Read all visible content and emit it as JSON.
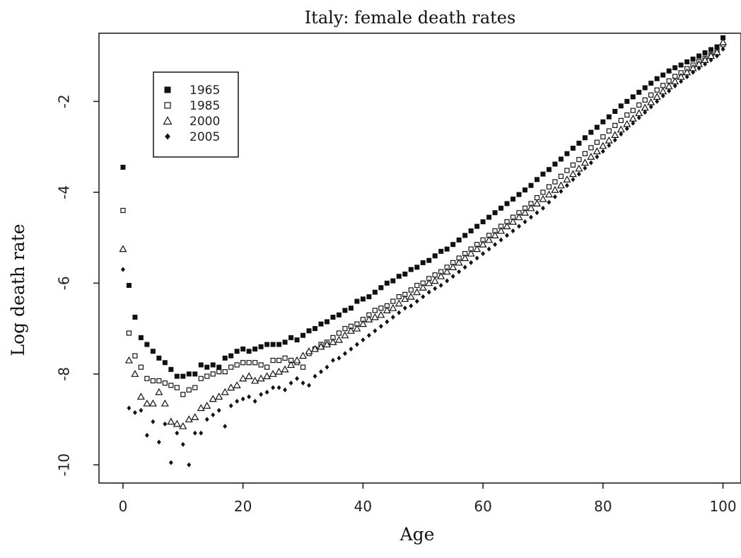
{
  "chart_data": {
    "type": "scatter",
    "title": "Italy: female death rates",
    "xlabel": "Age",
    "ylabel": "Log death rate",
    "xlim": [
      -4,
      103
    ],
    "ylim": [
      -10.4,
      -0.5
    ],
    "xticks": [
      0,
      20,
      40,
      60,
      80,
      100
    ],
    "yticks": [
      -2,
      -4,
      -6,
      -8,
      -10
    ],
    "xtick_labels": [
      "0",
      "20",
      "40",
      "60",
      "80",
      "100"
    ],
    "ytick_labels": [
      "-2",
      "-4",
      "-6",
      "-8",
      "-10"
    ],
    "grid": false,
    "legend_position": "top-left",
    "x": [
      0,
      1,
      2,
      3,
      4,
      5,
      6,
      7,
      8,
      9,
      10,
      11,
      12,
      13,
      14,
      15,
      16,
      17,
      18,
      19,
      20,
      21,
      22,
      23,
      24,
      25,
      26,
      27,
      28,
      29,
      30,
      31,
      32,
      33,
      34,
      35,
      36,
      37,
      38,
      39,
      40,
      41,
      42,
      43,
      44,
      45,
      46,
      47,
      48,
      49,
      50,
      51,
      52,
      53,
      54,
      55,
      56,
      57,
      58,
      59,
      60,
      61,
      62,
      63,
      64,
      65,
      66,
      67,
      68,
      69,
      70,
      71,
      72,
      73,
      74,
      75,
      76,
      77,
      78,
      79,
      80,
      81,
      82,
      83,
      84,
      85,
      86,
      87,
      88,
      89,
      90,
      91,
      92,
      93,
      94,
      95,
      96,
      97,
      98,
      99,
      100
    ],
    "series": [
      {
        "name": "1965",
        "marker": "filled-square",
        "color": "#111111",
        "values": [
          -3.45,
          -6.05,
          -6.75,
          -7.2,
          -7.35,
          -7.5,
          -7.65,
          -7.75,
          -7.9,
          -8.05,
          -8.05,
          -8.0,
          -8.0,
          -7.8,
          -7.85,
          -7.8,
          -7.85,
          -7.65,
          -7.6,
          -7.5,
          -7.45,
          -7.5,
          -7.45,
          -7.4,
          -7.35,
          -7.35,
          -7.35,
          -7.3,
          -7.2,
          -7.25,
          -7.15,
          -7.05,
          -7.0,
          -6.9,
          -6.85,
          -6.75,
          -6.7,
          -6.6,
          -6.55,
          -6.4,
          -6.35,
          -6.3,
          -6.2,
          -6.1,
          -6.0,
          -5.95,
          -5.85,
          -5.8,
          -5.7,
          -5.65,
          -5.55,
          -5.5,
          -5.4,
          -5.3,
          -5.25,
          -5.15,
          -5.05,
          -4.95,
          -4.85,
          -4.75,
          -4.65,
          -4.55,
          -4.45,
          -4.35,
          -4.25,
          -4.15,
          -4.05,
          -3.95,
          -3.85,
          -3.72,
          -3.6,
          -3.5,
          -3.38,
          -3.27,
          -3.15,
          -3.03,
          -2.92,
          -2.8,
          -2.68,
          -2.57,
          -2.45,
          -2.34,
          -2.22,
          -2.1,
          -2.0,
          -1.9,
          -1.8,
          -1.7,
          -1.6,
          -1.5,
          -1.42,
          -1.33,
          -1.26,
          -1.2,
          -1.13,
          -1.07,
          -1.0,
          -0.93,
          -0.86,
          -0.8,
          -0.6
        ]
      },
      {
        "name": "1985",
        "marker": "open-square",
        "color": "#111111",
        "values": [
          -4.4,
          -7.1,
          -7.6,
          -7.85,
          -8.1,
          -8.15,
          -8.15,
          -8.2,
          -8.25,
          -8.3,
          -8.45,
          -8.35,
          -8.3,
          -8.1,
          -8.05,
          -8.0,
          -7.95,
          -7.95,
          -7.85,
          -7.8,
          -7.75,
          -7.75,
          -7.75,
          -7.8,
          -7.85,
          -7.7,
          -7.7,
          -7.65,
          -7.7,
          -7.75,
          -7.85,
          -7.55,
          -7.45,
          -7.35,
          -7.3,
          -7.2,
          -7.1,
          -7.0,
          -6.95,
          -6.9,
          -6.8,
          -6.7,
          -6.6,
          -6.55,
          -6.5,
          -6.4,
          -6.3,
          -6.25,
          -6.15,
          -6.05,
          -6.0,
          -5.9,
          -5.82,
          -5.75,
          -5.65,
          -5.55,
          -5.45,
          -5.35,
          -5.25,
          -5.15,
          -5.05,
          -4.95,
          -4.85,
          -4.75,
          -4.65,
          -4.55,
          -4.45,
          -4.35,
          -4.25,
          -4.12,
          -4.0,
          -3.88,
          -3.77,
          -3.65,
          -3.52,
          -3.4,
          -3.28,
          -3.15,
          -3.02,
          -2.9,
          -2.78,
          -2.65,
          -2.53,
          -2.42,
          -2.3,
          -2.2,
          -2.08,
          -1.97,
          -1.86,
          -1.75,
          -1.65,
          -1.55,
          -1.45,
          -1.37,
          -1.28,
          -1.2,
          -1.12,
          -1.05,
          -0.98,
          -0.9,
          -0.75
        ]
      },
      {
        "name": "2000",
        "marker": "open-triangle",
        "color": "#111111",
        "values": [
          -5.25,
          -7.7,
          -8.0,
          -8.5,
          -8.65,
          -8.65,
          -8.4,
          -8.65,
          -9.05,
          -9.1,
          -9.15,
          -9.0,
          -8.95,
          -8.75,
          -8.7,
          -8.55,
          -8.5,
          -8.4,
          -8.3,
          -8.25,
          -8.1,
          -8.05,
          -8.15,
          -8.1,
          -8.05,
          -8.0,
          -7.95,
          -7.9,
          -7.8,
          -7.7,
          -7.6,
          -7.5,
          -7.45,
          -7.4,
          -7.35,
          -7.3,
          -7.25,
          -7.15,
          -7.05,
          -7.0,
          -6.9,
          -6.8,
          -6.75,
          -6.7,
          -6.6,
          -6.55,
          -6.45,
          -6.35,
          -6.3,
          -6.2,
          -6.1,
          -6.0,
          -5.95,
          -5.85,
          -5.75,
          -5.65,
          -5.55,
          -5.45,
          -5.35,
          -5.25,
          -5.15,
          -5.05,
          -4.95,
          -4.85,
          -4.75,
          -4.65,
          -4.55,
          -4.45,
          -4.35,
          -4.25,
          -4.15,
          -4.05,
          -3.95,
          -3.85,
          -3.72,
          -3.6,
          -3.48,
          -3.35,
          -3.22,
          -3.1,
          -2.98,
          -2.86,
          -2.74,
          -2.62,
          -2.5,
          -2.38,
          -2.26,
          -2.14,
          -2.02,
          -1.9,
          -1.78,
          -1.67,
          -1.56,
          -1.46,
          -1.36,
          -1.27,
          -1.18,
          -1.09,
          -1.0,
          -0.92,
          -0.7
        ]
      },
      {
        "name": "2005",
        "marker": "filled-diamond",
        "color": "#111111",
        "values": [
          -5.7,
          -8.75,
          -8.85,
          -8.8,
          -9.35,
          -9.05,
          -9.5,
          -9.1,
          -9.95,
          -9.3,
          -9.55,
          -10.0,
          -9.3,
          -9.3,
          -9.0,
          -8.9,
          -8.8,
          -9.15,
          -8.7,
          -8.6,
          -8.55,
          -8.5,
          -8.6,
          -8.45,
          -8.4,
          -8.3,
          -8.3,
          -8.35,
          -8.2,
          -8.1,
          -8.2,
          -8.25,
          -8.05,
          -7.95,
          -7.85,
          -7.7,
          -7.65,
          -7.55,
          -7.45,
          -7.35,
          -7.25,
          -7.15,
          -7.05,
          -6.95,
          -6.85,
          -6.75,
          -6.65,
          -6.55,
          -6.5,
          -6.4,
          -6.3,
          -6.2,
          -6.12,
          -6.05,
          -5.95,
          -5.85,
          -5.75,
          -5.65,
          -5.55,
          -5.45,
          -5.35,
          -5.25,
          -5.15,
          -5.05,
          -4.95,
          -4.85,
          -4.75,
          -4.65,
          -4.55,
          -4.45,
          -4.35,
          -4.22,
          -4.1,
          -3.98,
          -3.85,
          -3.72,
          -3.6,
          -3.47,
          -3.35,
          -3.22,
          -3.1,
          -2.97,
          -2.85,
          -2.72,
          -2.6,
          -2.48,
          -2.36,
          -2.24,
          -2.12,
          -2.0,
          -1.88,
          -1.77,
          -1.66,
          -1.56,
          -1.46,
          -1.36,
          -1.27,
          -1.18,
          -1.09,
          -1.0,
          -0.85
        ]
      }
    ]
  }
}
